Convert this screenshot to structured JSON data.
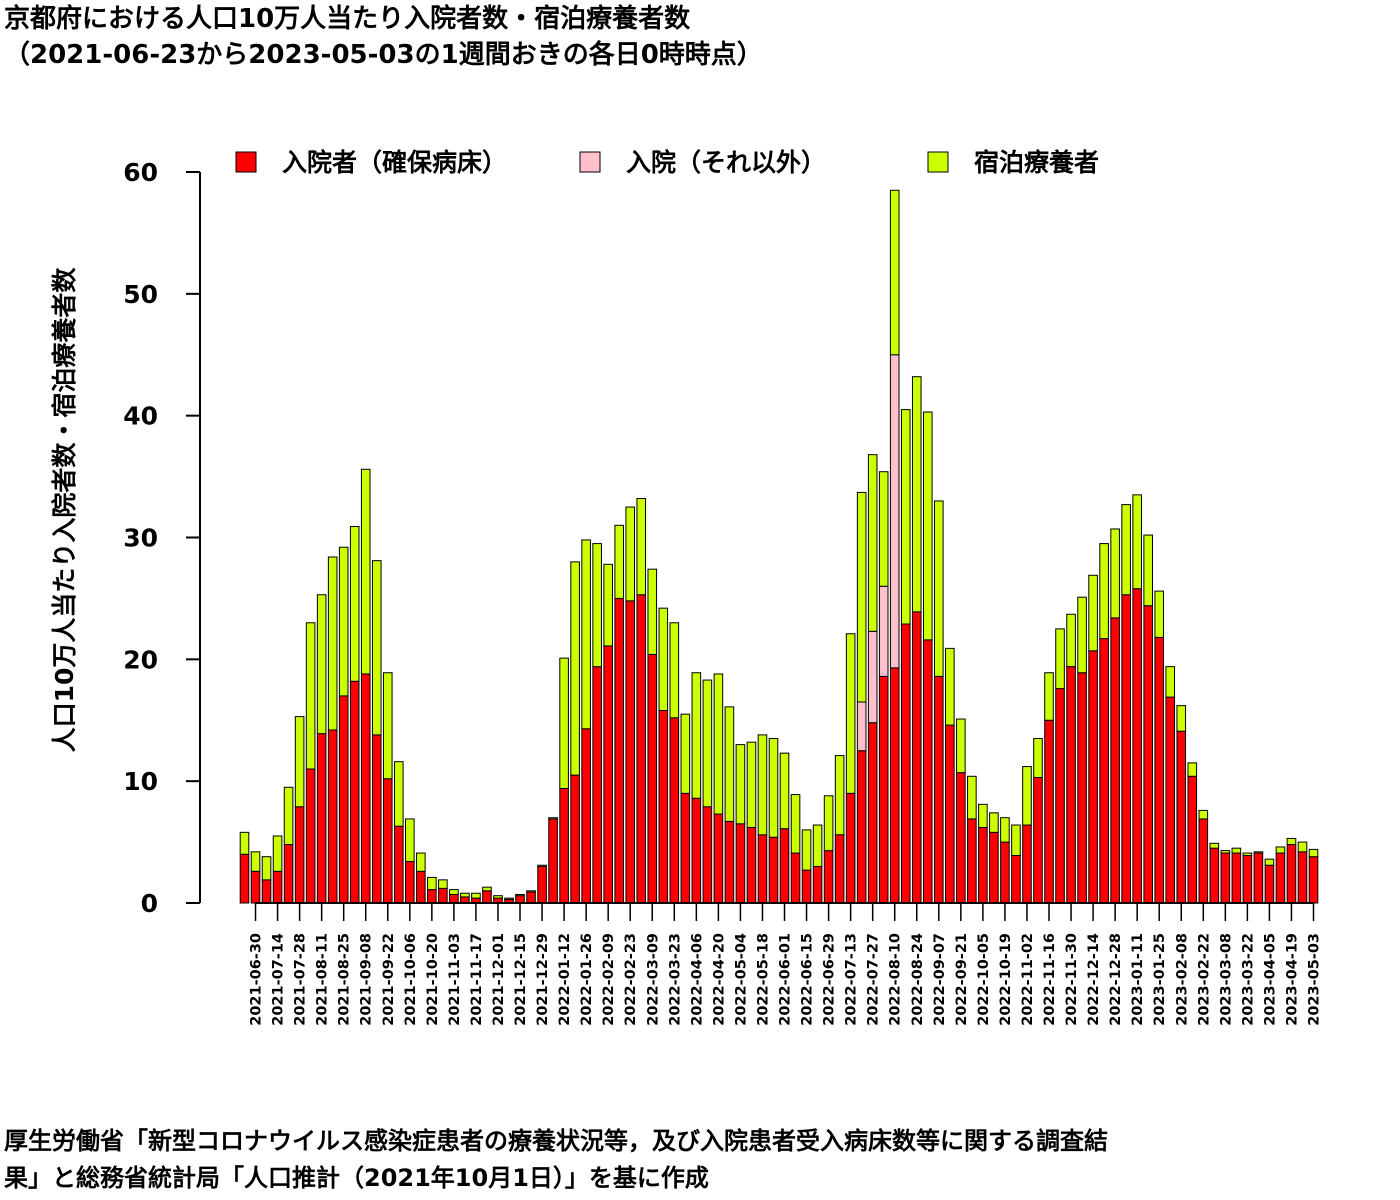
{
  "header": {
    "title_line1": "京都府における人口10万人当たり入院者数・宿泊療養者数",
    "title_line2": "（2021-06-23から2023-05-03の1週間おきの各日0時時点）"
  },
  "footer": {
    "note_line1": "厚生労働省「新型コロナウイルス感染症患者の療養状況等，及び入院患者受入病床数等に関する調査結",
    "note_line2": "果」と総務省統計局「人口推計（2021年10月1日）」を基に作成"
  },
  "colors": {
    "hospitalized_secured": "#ff0000",
    "hospitalized_other": "#ffc0cb",
    "hotel": "#ccff00",
    "axis": "#000000",
    "bar_border": "#000000"
  },
  "chart_data": {
    "type": "bar",
    "stacked": true,
    "ylabel": "人口10万人当たり入院者数・宿泊療養者数",
    "xlabel": "",
    "ylim": [
      0,
      60
    ],
    "yticks": [
      0,
      10,
      20,
      30,
      40,
      50,
      60
    ],
    "grid": false,
    "legend_position": "top",
    "categories": [
      "2021-06-23",
      "2021-06-30",
      "2021-07-07",
      "2021-07-14",
      "2021-07-21",
      "2021-07-28",
      "2021-08-04",
      "2021-08-11",
      "2021-08-18",
      "2021-08-25",
      "2021-09-01",
      "2021-09-08",
      "2021-09-15",
      "2021-09-22",
      "2021-09-29",
      "2021-10-06",
      "2021-10-13",
      "2021-10-20",
      "2021-10-27",
      "2021-11-03",
      "2021-11-10",
      "2021-11-17",
      "2021-11-24",
      "2021-12-01",
      "2021-12-08",
      "2021-12-15",
      "2021-12-22",
      "2021-12-29",
      "2022-01-05",
      "2022-01-12",
      "2022-01-19",
      "2022-01-26",
      "2022-02-02",
      "2022-02-09",
      "2022-02-16",
      "2022-02-23",
      "2022-03-02",
      "2022-03-09",
      "2022-03-16",
      "2022-03-23",
      "2022-03-30",
      "2022-04-06",
      "2022-04-13",
      "2022-04-20",
      "2022-04-27",
      "2022-05-04",
      "2022-05-11",
      "2022-05-18",
      "2022-05-25",
      "2022-06-01",
      "2022-06-08",
      "2022-06-15",
      "2022-06-22",
      "2022-06-29",
      "2022-07-06",
      "2022-07-13",
      "2022-07-20",
      "2022-07-27",
      "2022-08-03",
      "2022-08-10",
      "2022-08-17",
      "2022-08-24",
      "2022-08-31",
      "2022-09-07",
      "2022-09-14",
      "2022-09-21",
      "2022-09-28",
      "2022-10-05",
      "2022-10-12",
      "2022-10-19",
      "2022-10-26",
      "2022-11-02",
      "2022-11-09",
      "2022-11-16",
      "2022-11-23",
      "2022-11-30",
      "2022-12-07",
      "2022-12-14",
      "2022-12-21",
      "2022-12-28",
      "2023-01-04",
      "2023-01-11",
      "2023-01-18",
      "2023-01-25",
      "2023-02-01",
      "2023-02-08",
      "2023-02-15",
      "2023-02-22",
      "2023-03-01",
      "2023-03-08",
      "2023-03-15",
      "2023-03-22",
      "2023-03-29",
      "2023-04-05",
      "2023-04-12",
      "2023-04-19",
      "2023-04-26",
      "2023-05-03"
    ],
    "tick_labels": [
      "2021-06-30",
      "2021-07-14",
      "2021-07-28",
      "2021-08-11",
      "2021-08-25",
      "2021-09-08",
      "2021-09-22",
      "2021-10-06",
      "2021-10-20",
      "2021-11-03",
      "2021-11-17",
      "2021-12-01",
      "2021-12-15",
      "2021-12-29",
      "2022-01-12",
      "2022-01-26",
      "2022-02-09",
      "2022-02-23",
      "2022-03-09",
      "2022-03-23",
      "2022-04-06",
      "2022-04-20",
      "2022-05-04",
      "2022-05-18",
      "2022-06-01",
      "2022-06-15",
      "2022-06-29",
      "2022-07-13",
      "2022-07-27",
      "2022-08-10",
      "2022-08-24",
      "2022-09-07",
      "2022-09-21",
      "2022-10-05",
      "2022-10-19",
      "2022-11-02",
      "2022-11-16",
      "2022-11-30",
      "2022-12-14",
      "2022-12-28",
      "2023-01-11",
      "2023-01-25",
      "2023-02-08",
      "2023-02-22",
      "2023-03-08",
      "2023-03-22",
      "2023-04-05",
      "2023-04-19",
      "2023-05-03"
    ],
    "series": [
      {
        "name": "入院者（確保病床）",
        "color": "#ff0000",
        "values": [
          4.0,
          2.6,
          1.9,
          2.6,
          4.8,
          7.9,
          11.0,
          13.9,
          14.2,
          17.0,
          18.2,
          18.8,
          13.8,
          10.2,
          6.3,
          3.4,
          2.6,
          1.1,
          1.2,
          0.7,
          0.5,
          0.4,
          1.0,
          0.4,
          0.3,
          0.6,
          0.9,
          3.0,
          6.9,
          9.4,
          10.5,
          14.3,
          19.4,
          21.1,
          25.0,
          24.8,
          25.3,
          20.4,
          15.8,
          15.2,
          9.0,
          8.6,
          7.9,
          7.3,
          6.7,
          6.5,
          6.2,
          5.6,
          5.4,
          6.1,
          4.1,
          2.7,
          3.0,
          4.3,
          5.6,
          9.0,
          12.5,
          14.8,
          18.6,
          19.3,
          22.9,
          23.9,
          21.6,
          18.6,
          14.6,
          10.7,
          6.9,
          6.2,
          5.8,
          5.0,
          3.9,
          6.4,
          10.3,
          15.0,
          17.6,
          19.4,
          18.9,
          20.7,
          21.7,
          23.4,
          25.3,
          25.8,
          24.4,
          21.8,
          16.9,
          14.1,
          10.4,
          6.9,
          4.5,
          4.1,
          4.1,
          3.9,
          4.1,
          3.1,
          4.1,
          4.8,
          4.2,
          3.8
        ]
      },
      {
        "name": "入院（それ以外）",
        "color": "#ffc0cb",
        "values": [
          0,
          0,
          0,
          0,
          0,
          0,
          0,
          0,
          0,
          0,
          0,
          0,
          0,
          0,
          0,
          0,
          0,
          0,
          0,
          0,
          0,
          0,
          0,
          0,
          0,
          0,
          0,
          0,
          0,
          0,
          0,
          0,
          0,
          0,
          0,
          0,
          0,
          0,
          0,
          0,
          0,
          0,
          0,
          0,
          0,
          0,
          0,
          0,
          0,
          0,
          0,
          0,
          0,
          0,
          0,
          0,
          4.0,
          7.5,
          7.4,
          25.7,
          0,
          0,
          0,
          0,
          0,
          0,
          0,
          0,
          0,
          0,
          0,
          0,
          0,
          0,
          0,
          0,
          0,
          0,
          0,
          0,
          0,
          0,
          0,
          0,
          0,
          0,
          0,
          0,
          0,
          0,
          0,
          0,
          0,
          0,
          0,
          0,
          0,
          0
        ]
      },
      {
        "name": "宿泊療養者",
        "color": "#ccff00",
        "values": [
          1.8,
          1.6,
          1.9,
          2.9,
          4.7,
          7.4,
          12.0,
          11.4,
          14.2,
          12.2,
          12.7,
          16.8,
          14.3,
          8.7,
          5.3,
          3.5,
          1.5,
          1.0,
          0.7,
          0.4,
          0.3,
          0.4,
          0.3,
          0.2,
          0.1,
          0.1,
          0.1,
          0.1,
          0.1,
          10.7,
          17.5,
          15.5,
          10.1,
          6.7,
          6.0,
          7.7,
          7.9,
          7.0,
          8.4,
          7.8,
          6.5,
          10.3,
          10.4,
          11.5,
          9.4,
          6.5,
          7.0,
          8.2,
          8.1,
          6.2,
          4.8,
          3.3,
          3.4,
          4.5,
          6.5,
          13.1,
          17.2,
          14.5,
          9.4,
          13.5,
          17.6,
          19.3,
          18.7,
          14.4,
          6.3,
          4.4,
          3.5,
          1.9,
          1.6,
          2.0,
          2.5,
          4.8,
          3.2,
          3.9,
          4.9,
          4.3,
          6.2,
          6.2,
          7.8,
          7.3,
          7.4,
          7.7,
          5.8,
          3.8,
          2.5,
          2.1,
          1.1,
          0.7,
          0.4,
          0.2,
          0.4,
          0.2,
          0.1,
          0.5,
          0.5,
          0.5,
          0.8,
          0.6
        ]
      }
    ]
  }
}
